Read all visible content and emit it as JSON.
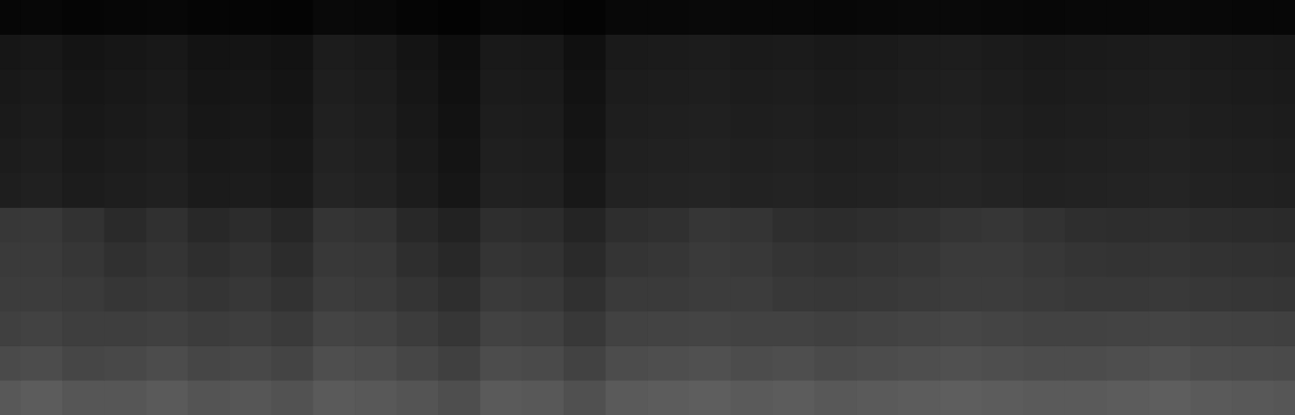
{
  "chart_data": {
    "type": "heatmap",
    "cells": [
      [
        6,
        7,
        5,
        6,
        7,
        5,
        5,
        4,
        9,
        8,
        5,
        3,
        7,
        6,
        4,
        8,
        8,
        9,
        8,
        8,
        7,
        8,
        9,
        9,
        8,
        7,
        8,
        8,
        9,
        8,
        7,
        7
      ],
      [
        22,
        24,
        20,
        22,
        24,
        19,
        20,
        18,
        28,
        26,
        20,
        14,
        25,
        24,
        16,
        26,
        27,
        28,
        26,
        27,
        25,
        26,
        28,
        29,
        27,
        25,
        26,
        27,
        28,
        26,
        25,
        24
      ],
      [
        24,
        26,
        22,
        24,
        26,
        21,
        22,
        20,
        30,
        28,
        22,
        16,
        27,
        26,
        18,
        28,
        29,
        30,
        28,
        29,
        27,
        28,
        30,
        31,
        29,
        27,
        28,
        29,
        30,
        28,
        27,
        26
      ],
      [
        26,
        28,
        24,
        26,
        28,
        23,
        24,
        22,
        32,
        30,
        24,
        18,
        29,
        28,
        20,
        30,
        31,
        32,
        30,
        31,
        29,
        30,
        32,
        33,
        31,
        29,
        30,
        31,
        32,
        30,
        29,
        28
      ],
      [
        28,
        30,
        26,
        28,
        30,
        25,
        26,
        24,
        34,
        32,
        26,
        20,
        31,
        30,
        22,
        32,
        33,
        34,
        32,
        33,
        31,
        32,
        34,
        35,
        33,
        31,
        32,
        33,
        34,
        32,
        31,
        30
      ],
      [
        30,
        32,
        28,
        30,
        32,
        27,
        28,
        26,
        36,
        34,
        28,
        22,
        33,
        32,
        24,
        34,
        35,
        36,
        34,
        35,
        33,
        34,
        36,
        37,
        35,
        33,
        34,
        35,
        36,
        34,
        33,
        32
      ],
      [
        55,
        56,
        50,
        42,
        48,
        40,
        44,
        38,
        52,
        50,
        40,
        34,
        46,
        44,
        36,
        46,
        48,
        54,
        52,
        46,
        44,
        46,
        48,
        52,
        54,
        50,
        46,
        45,
        46,
        44,
        43,
        42
      ],
      [
        58,
        58,
        54,
        48,
        52,
        46,
        50,
        44,
        56,
        55,
        46,
        40,
        52,
        50,
        42,
        52,
        54,
        58,
        56,
        52,
        50,
        52,
        54,
        58,
        58,
        55,
        52,
        51,
        52,
        50,
        49,
        48
      ],
      [
        60,
        60,
        58,
        54,
        56,
        52,
        55,
        50,
        60,
        58,
        52,
        46,
        58,
        56,
        48,
        58,
        58,
        60,
        60,
        56,
        55,
        56,
        58,
        60,
        60,
        58,
        56,
        56,
        57,
        55,
        54,
        53
      ],
      [
        64,
        66,
        62,
        62,
        64,
        60,
        62,
        58,
        68,
        66,
        60,
        54,
        66,
        64,
        56,
        66,
        67,
        68,
        66,
        66,
        64,
        66,
        68,
        70,
        68,
        66,
        66,
        67,
        68,
        66,
        65,
        64
      ],
      [
        74,
        76,
        70,
        72,
        76,
        70,
        72,
        68,
        78,
        76,
        70,
        64,
        76,
        74,
        66,
        76,
        78,
        80,
        76,
        78,
        74,
        76,
        78,
        80,
        78,
        76,
        76,
        78,
        80,
        76,
        75,
        74
      ],
      [
        88,
        92,
        86,
        86,
        90,
        84,
        86,
        82,
        90,
        88,
        84,
        78,
        90,
        88,
        80,
        90,
        92,
        94,
        90,
        92,
        88,
        90,
        92,
        94,
        92,
        90,
        90,
        92,
        94,
        90,
        88,
        86
      ]
    ],
    "zlim": [
      0,
      255
    ],
    "tick_labels": false,
    "grid": false
  }
}
